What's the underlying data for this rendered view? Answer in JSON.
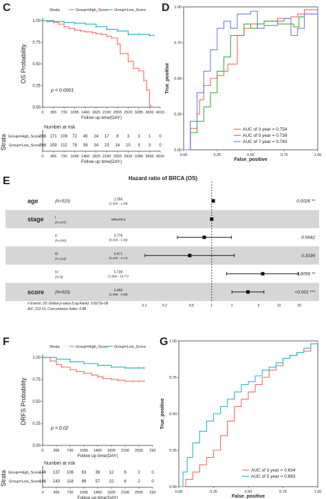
{
  "panels": {
    "C": "C",
    "D": "D",
    "E": "E",
    "F": "F",
    "G": "G"
  },
  "colors": {
    "high": "#f0786b",
    "low": "#22b8c4",
    "auc3": "#f06a5c",
    "auc5": "#3aab3a",
    "auc7": "#6b7fe0",
    "band": "#d6d6d6"
  },
  "chart_data": [
    {
      "id": "C",
      "type": "line",
      "title": "",
      "legend_title": "Strata",
      "legend": [
        "Group=High_Score",
        "Group=Low_Score"
      ],
      "ylabel": "OS Probability",
      "xlabel": "Follow up time(DAY)",
      "x_ticks": [
        "0",
        "365",
        "730",
        "1095",
        "1460",
        "1825",
        "2190",
        "2555",
        "2920",
        "3285",
        "3650",
        "4015"
      ],
      "y_ticks": [
        "0.00",
        "0.25",
        "0.50",
        "0.75",
        "1.00"
      ],
      "xlim": [
        0,
        4015
      ],
      "ylim": [
        0,
        1
      ],
      "pvalue": "p < 0.0001",
      "series": [
        {
          "name": "Group=High_Score",
          "x": [
            0,
            150,
            365,
            550,
            730,
            900,
            1095,
            1300,
            1460,
            1700,
            1825,
            2000,
            2190,
            2350,
            2555,
            2650,
            2920,
            3100,
            3285,
            3450,
            3550,
            3650,
            3700
          ],
          "y": [
            1.0,
            0.99,
            0.98,
            0.96,
            0.93,
            0.91,
            0.89,
            0.88,
            0.87,
            0.86,
            0.85,
            0.84,
            0.82,
            0.8,
            0.73,
            0.62,
            0.53,
            0.45,
            0.42,
            0.31,
            0.2,
            0.02,
            0.02
          ]
        },
        {
          "name": "Group=Low_Score",
          "x": [
            0,
            365,
            730,
            1095,
            1460,
            1825,
            2190,
            2555,
            2920,
            3285,
            3650,
            3800
          ],
          "y": [
            1.0,
            0.99,
            0.98,
            0.97,
            0.96,
            0.93,
            0.9,
            0.88,
            0.84,
            0.84,
            0.83,
            0.83
          ]
        }
      ]
    },
    {
      "id": "D",
      "type": "line",
      "title": "",
      "xlabel": "False_positive",
      "ylabel": "True_positive",
      "x_ticks": [
        "0.00",
        "0.25",
        "0.50",
        "0.75",
        "1.00"
      ],
      "y_ticks": [
        "0.00",
        "0.25",
        "0.50",
        "0.75",
        "1.00"
      ],
      "xlim": [
        0,
        1
      ],
      "ylim": [
        0,
        1
      ],
      "legend": [
        "AUC of 3 year = 0.754",
        "AUC of 5 year = 0.739",
        "AUC of 7 year = 0.783"
      ],
      "series": [
        {
          "name": "AUC of 3 year = 0.754",
          "x": [
            0,
            0.05,
            0.1,
            0.12,
            0.15,
            0.2,
            0.25,
            0.3,
            0.33,
            0.4,
            0.45,
            0.5,
            0.6,
            0.7,
            0.8,
            0.85,
            0.9,
            1.0
          ],
          "y": [
            0,
            0.15,
            0.25,
            0.35,
            0.45,
            0.5,
            0.52,
            0.55,
            0.6,
            0.8,
            0.85,
            0.88,
            0.9,
            0.92,
            0.93,
            0.95,
            0.98,
            1.0
          ]
        },
        {
          "name": "AUC of 5 year = 0.739",
          "x": [
            0,
            0.05,
            0.1,
            0.15,
            0.2,
            0.25,
            0.3,
            0.35,
            0.45,
            0.5,
            0.55,
            0.6,
            0.7,
            0.8,
            0.82,
            0.86,
            0.9,
            1.0
          ],
          "y": [
            0,
            0.12,
            0.2,
            0.3,
            0.4,
            0.55,
            0.65,
            0.8,
            0.88,
            0.85,
            0.88,
            0.9,
            0.88,
            0.88,
            0.86,
            0.93,
            0.95,
            1.0
          ]
        },
        {
          "name": "AUC of 7 year = 0.783",
          "x": [
            0,
            0.05,
            0.1,
            0.15,
            0.2,
            0.25,
            0.3,
            0.35,
            0.4,
            0.5,
            0.55,
            0.6,
            0.7,
            0.75,
            0.8,
            0.85,
            0.9,
            1.0
          ],
          "y": [
            0,
            0.2,
            0.4,
            0.55,
            0.7,
            0.85,
            0.9,
            0.85,
            0.95,
            0.97,
            0.85,
            0.87,
            0.9,
            0.92,
            0.8,
            0.85,
            0.95,
            1.0
          ]
        }
      ]
    },
    {
      "id": "E",
      "type": "scatter",
      "title": "Hazard ratio of BRCA (OS)",
      "x_ticks": [
        "0.1",
        "0.2",
        "0.5",
        "1",
        "2",
        "5",
        "10",
        "20"
      ],
      "x_scale": "log",
      "rows": [
        {
          "label": "age",
          "group": "",
          "n": "(N=520)",
          "est": "1.056",
          "ci": "(1.019 - 1.09)",
          "hr": 1.056,
          "lo": 1.019,
          "hi": 1.09,
          "p": "0.0026 **",
          "band": false
        },
        {
          "label": "stage",
          "group": "I",
          "n": "(N=107)",
          "est": "reference",
          "ci": "",
          "hr": 1.0,
          "lo": null,
          "hi": null,
          "p": "",
          "band": true
        },
        {
          "label": "",
          "group": "II",
          "n": "(N=290)",
          "est": "0.776",
          "ci": "(0.309 - 1.96)",
          "hr": 0.776,
          "lo": 0.309,
          "hi": 1.96,
          "p": "0.5942",
          "band": false
        },
        {
          "label": "",
          "group": "III",
          "n": "(N=114)",
          "est": "0.471",
          "ci": "(0.102 - 2.17)",
          "hr": 0.471,
          "lo": 0.102,
          "hi": 2.17,
          "p": "0.3336",
          "band": true
        },
        {
          "label": "",
          "group": "IV",
          "n": "(N=9)",
          "est": "5.739",
          "ci": "(1.666 - 19.77)",
          "hr": 5.739,
          "lo": 1.666,
          "hi": 19.77,
          "p": "0.0056 **",
          "band": false
        },
        {
          "label": "score",
          "group": "",
          "n": "(N=520)",
          "est": "3.460",
          "ci": "(1.998 - 5.99)",
          "hr": 3.46,
          "lo": 1.998,
          "hi": 5.99,
          "p": "<0.001 ***",
          "band": true
        }
      ],
      "footnotes": [
        "# Events: 29; Global p-value (Log-Rank): 9.8272e-08",
        "AIC: 212.51; Concordance Index: 0.88"
      ]
    },
    {
      "id": "F",
      "type": "line",
      "title": "",
      "legend_title": "Strata",
      "legend": [
        "Group=High_Score",
        "Group=Low_Score"
      ],
      "ylabel": "DRFS Probability",
      "xlabel": "Follow up time(DAY)",
      "x_ticks": [
        "0",
        "365",
        "730",
        "1095",
        "1460",
        "1825",
        "2190",
        "2555",
        "292"
      ],
      "y_ticks": [
        "0.00",
        "0.25",
        "0.50",
        "0.75",
        "1.00"
      ],
      "xlim": [
        0,
        2920
      ],
      "ylim": [
        0,
        1
      ],
      "pvalue": "p = 0.02",
      "series": [
        {
          "name": "Group=High_Score",
          "x": [
            0,
            200,
            365,
            500,
            730,
            900,
            1095,
            1300,
            1460,
            1600,
            1825,
            2000,
            2190,
            2400,
            2555,
            2700
          ],
          "y": [
            1.0,
            0.96,
            0.92,
            0.89,
            0.86,
            0.84,
            0.82,
            0.8,
            0.78,
            0.76,
            0.75,
            0.74,
            0.73,
            0.73,
            0.73,
            0.73
          ]
        },
        {
          "name": "Group=Low_Score",
          "x": [
            0,
            365,
            730,
            1095,
            1460,
            1825,
            2190,
            2555,
            2700
          ],
          "y": [
            1.0,
            0.98,
            0.95,
            0.93,
            0.91,
            0.89,
            0.88,
            0.88,
            0.88
          ]
        }
      ]
    },
    {
      "id": "G",
      "type": "line",
      "title": "",
      "xlabel": "False_positive",
      "ylabel": "True_positive",
      "x_ticks": [
        "0.00",
        "0.25",
        "0.50",
        "0.75",
        "1.00"
      ],
      "y_ticks": [
        "0.00",
        "0.25",
        "0.50",
        "0.75",
        "1.00"
      ],
      "xlim": [
        0,
        1
      ],
      "ylim": [
        0,
        1
      ],
      "legend": [
        "AUC of 3 year = 0.634",
        "AUC of 5 year = 0.683"
      ],
      "series": [
        {
          "name": "AUC of 3 year = 0.634",
          "x": [
            0,
            0.05,
            0.1,
            0.15,
            0.2,
            0.25,
            0.3,
            0.35,
            0.4,
            0.45,
            0.5,
            0.55,
            0.6,
            0.65,
            0.7,
            0.75,
            0.8,
            0.85,
            0.9,
            0.95,
            1.0
          ],
          "y": [
            0,
            0.05,
            0.1,
            0.15,
            0.2,
            0.25,
            0.35,
            0.45,
            0.55,
            0.6,
            0.65,
            0.7,
            0.75,
            0.8,
            0.83,
            0.88,
            0.9,
            0.92,
            0.93,
            0.98,
            1.0
          ]
        },
        {
          "name": "AUC of 5 year = 0.683",
          "x": [
            0,
            0.03,
            0.06,
            0.1,
            0.15,
            0.2,
            0.25,
            0.3,
            0.35,
            0.4,
            0.45,
            0.5,
            0.55,
            0.6,
            0.65,
            0.7,
            0.75,
            0.8,
            0.85,
            0.9,
            0.95,
            1.0
          ],
          "y": [
            0,
            0.1,
            0.2,
            0.3,
            0.38,
            0.45,
            0.5,
            0.55,
            0.6,
            0.65,
            0.7,
            0.72,
            0.76,
            0.8,
            0.82,
            0.85,
            0.88,
            0.9,
            0.92,
            0.95,
            0.98,
            1.0
          ]
        }
      ]
    }
  ],
  "risk_tables": {
    "C": {
      "title": "Number at risk",
      "strata_label": "Strata",
      "rows": [
        {
          "name": "Group=High_Score",
          "values": [
            "266",
            "171",
            "109",
            "72",
            "45",
            "24",
            "17",
            "8",
            "3",
            "3",
            "1",
            "0"
          ]
        },
        {
          "name": "Group=Low_Score",
          "values": [
            "266",
            "159",
            "112",
            "78",
            "59",
            "34",
            "23",
            "14",
            "10",
            "3",
            "3",
            "0"
          ]
        }
      ],
      "x_ticks": [
        "0",
        "365",
        "730",
        "1095",
        "1460",
        "1825",
        "2190",
        "2555",
        "2920",
        "3285",
        "3650",
        "4015"
      ],
      "xlabel": "Follow up time(DAY)"
    },
    "F": {
      "title": "Number at risk",
      "strata_label": "Strata",
      "rows": [
        {
          "name": "Group=High_Score",
          "values": [
            "146",
            "137",
            "106",
            "63",
            "36",
            "12",
            "6",
            "2",
            "0"
          ]
        },
        {
          "name": "Group=Low_Score",
          "values": [
            "146",
            "143",
            "118",
            "88",
            "57",
            "22",
            "6",
            "2",
            "0"
          ]
        }
      ],
      "x_ticks": [
        "0",
        "365",
        "730",
        "1095",
        "1460",
        "1825",
        "2190",
        "2555",
        "292"
      ],
      "xlabel": "Follow up time(DAY)"
    }
  }
}
